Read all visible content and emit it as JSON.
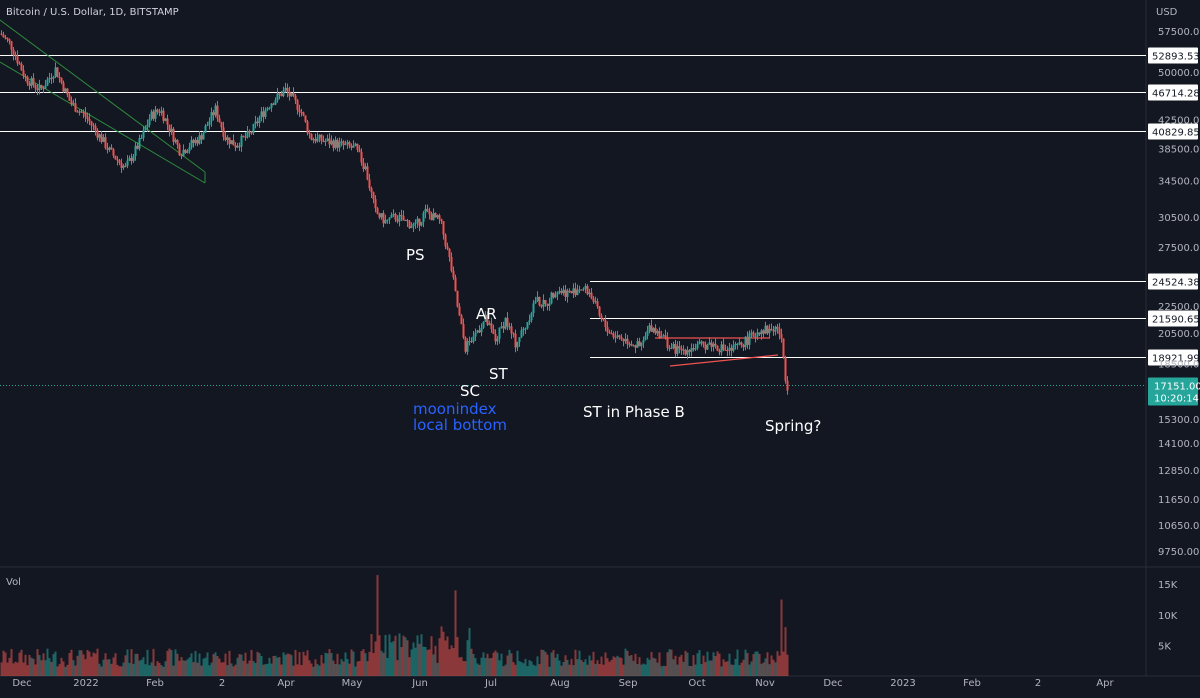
{
  "header": {
    "symbol_title": "Bitcoin / U.S. Dollar, 1D, BITSTAMP"
  },
  "chart_data": {
    "type": "candlestick",
    "title": "Bitcoin / U.S. Dollar, 1D, BITSTAMP",
    "currency": "USD",
    "price_axis": {
      "ticks": [
        57500,
        50000,
        42500,
        38500,
        34500,
        30500,
        27500,
        22500,
        20500,
        18500,
        15300,
        14100,
        12850,
        11650,
        10650,
        9750
      ],
      "tick_labels": [
        "57500.00",
        "50000.00",
        "42500.00",
        "38500.00",
        "34500.00",
        "30500.00",
        "27500.00",
        "22500.00",
        "20500.00",
        "18500.00",
        "15300.00",
        "14100.00",
        "12850.00",
        "11650.00",
        "10650.00",
        "9750.00"
      ],
      "log_scale": true
    },
    "time_axis": {
      "labels": [
        "Dec",
        "2022",
        "Feb",
        "2",
        "Apr",
        "May",
        "Jun",
        "Jul",
        "Aug",
        "Sep",
        "Oct",
        "Nov",
        "Dec",
        "2023",
        "Feb",
        "2",
        "Apr"
      ]
    },
    "levels": [
      {
        "price": 52893.53,
        "label": "52893.53"
      },
      {
        "price": 46714.28,
        "label": "46714.28"
      },
      {
        "price": 40829.85,
        "label": "40829.85"
      },
      {
        "price": 24524.38,
        "label": "24524.38"
      },
      {
        "price": 21590.65,
        "label": "21590.65"
      },
      {
        "price": 18921.99,
        "label": "18921.99"
      }
    ],
    "last_price": {
      "value": 17151,
      "label": "17151.00",
      "countdown": "10:20:14"
    },
    "annotations": {
      "ps": "PS",
      "ar": "AR",
      "sc": "SC",
      "st": "ST",
      "moonindex_1": "moonindex",
      "moonindex_2": "local bottom",
      "st_phase_b": "ST in Phase B",
      "spring": "Spring?"
    },
    "volume": {
      "label": "Vol",
      "ticks": [
        15000,
        10000,
        5000
      ],
      "tick_labels": [
        "15K",
        "10K",
        "5K"
      ]
    },
    "price_keypoints": [
      [
        0,
        57000
      ],
      [
        10,
        55000
      ],
      [
        25,
        49000
      ],
      [
        40,
        47000
      ],
      [
        55,
        50500
      ],
      [
        70,
        45000
      ],
      [
        85,
        43000
      ],
      [
        100,
        40000
      ],
      [
        110,
        38000
      ],
      [
        125,
        36000
      ],
      [
        140,
        39500
      ],
      [
        150,
        43000
      ],
      [
        160,
        44000
      ],
      [
        170,
        41000
      ],
      [
        180,
        38000
      ],
      [
        190,
        39000
      ],
      [
        200,
        40000
      ],
      [
        215,
        44000
      ],
      [
        225,
        40000
      ],
      [
        235,
        39000
      ],
      [
        250,
        40500
      ],
      [
        260,
        43000
      ],
      [
        270,
        45000
      ],
      [
        285,
        47000
      ],
      [
        300,
        44000
      ],
      [
        310,
        40000
      ],
      [
        325,
        39500
      ],
      [
        340,
        39000
      ],
      [
        355,
        38500
      ],
      [
        365,
        36000
      ],
      [
        375,
        31000
      ],
      [
        385,
        30000
      ],
      [
        395,
        30500
      ],
      [
        405,
        30000
      ],
      [
        415,
        29500
      ],
      [
        425,
        31000
      ],
      [
        440,
        30000
      ],
      [
        450,
        26000
      ],
      [
        458,
        22000
      ],
      [
        465,
        19500
      ],
      [
        475,
        20500
      ],
      [
        485,
        21500
      ],
      [
        495,
        20000
      ],
      [
        505,
        21500
      ],
      [
        515,
        19800
      ],
      [
        525,
        21000
      ],
      [
        535,
        23000
      ],
      [
        545,
        22500
      ],
      [
        555,
        23800
      ],
      [
        570,
        23500
      ],
      [
        580,
        24000
      ],
      [
        590,
        23500
      ],
      [
        600,
        21500
      ],
      [
        610,
        20500
      ],
      [
        620,
        20200
      ],
      [
        630,
        19900
      ],
      [
        640,
        19500
      ],
      [
        650,
        21000
      ],
      [
        660,
        20500
      ],
      [
        670,
        19500
      ],
      [
        680,
        19300
      ],
      [
        690,
        19500
      ],
      [
        700,
        19600
      ],
      [
        710,
        19800
      ],
      [
        720,
        19500
      ],
      [
        730,
        19300
      ],
      [
        740,
        19700
      ],
      [
        750,
        20200
      ],
      [
        760,
        20800
      ],
      [
        770,
        20700
      ],
      [
        778,
        20900
      ],
      [
        782,
        19500
      ],
      [
        786,
        17151
      ]
    ]
  },
  "colors": {
    "up": "#26a69a",
    "down": "#ef5350",
    "line": "#ffffff",
    "channel": "#2e8b3e",
    "triangle": "#ef5350",
    "moonindex": "#2962ff",
    "last_price": "#26a69a"
  }
}
